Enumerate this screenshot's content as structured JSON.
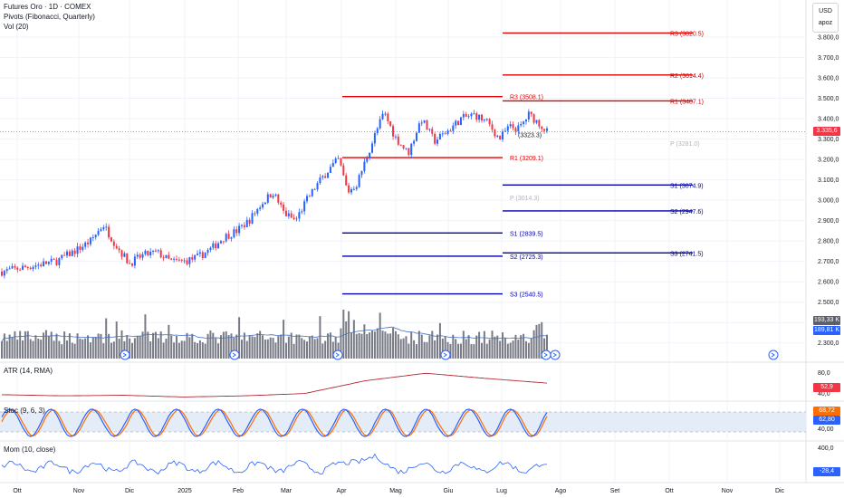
{
  "legend": {
    "title": "Futures Oro · 1D · COMEX",
    "pivots": "Pivots (Fibonacci, Quarterly)",
    "vol": "Vol (20)"
  },
  "currency_box": {
    "currency": "USD",
    "unit": "apoz"
  },
  "price_tags": {
    "last": "3.335,6",
    "vol_a": "193,33 K",
    "vol_b": "189,81 K"
  },
  "panes": {
    "atr": {
      "label": "ATR (14, RMA)",
      "tag": "52,9",
      "ticks": [
        "80,0",
        "40,0"
      ]
    },
    "stoch": {
      "label": "Stoc (9, 6, 3)",
      "tag_k": "68,72",
      "tag_d": "62,80",
      "ticks": [
        "40,00"
      ]
    },
    "mom": {
      "label": "Mom (10, close)",
      "tag": "-28,4",
      "ticks": [
        "400,0"
      ]
    }
  },
  "colors": {
    "up": "#2962ff",
    "down": "#f23645",
    "volume": "#787b86",
    "vol_ma": "#4472c4",
    "resistance": "#e00000",
    "support": "#0000b0",
    "pivot": "#ffffff",
    "atr": "#b22833",
    "stoch_k": "#2962ff",
    "stoch_d": "#ff6d00",
    "mom": "#2962ff"
  },
  "chart_data": [
    {
      "type": "candlestick",
      "x_ticks": [
        "Ott",
        "Nov",
        "Dic",
        "2025",
        "Feb",
        "Mar",
        "Apr",
        "Mag",
        "Giu",
        "Lug",
        "Ago",
        "Set",
        "Ott",
        "Nov",
        "Dic"
      ],
      "y_ticks": [
        "3.800,0",
        "3.700,0",
        "3.600,0",
        "3.500,0",
        "3.400,0",
        "3.300,0",
        "3.200,0",
        "3.100,0",
        "3.000,0",
        "2.900,0",
        "2.800,0",
        "2.700,0",
        "2.600,0",
        "2.500,0",
        "2.400,0",
        "2.300,0"
      ],
      "ylim": [
        2250,
        3840
      ],
      "price_path": [
        [
          "Ott",
          2650
        ],
        [
          "Ott",
          2700
        ],
        [
          "Nov",
          2760
        ],
        [
          "Nov",
          2800
        ],
        [
          "Nov",
          2880
        ],
        [
          "Nov",
          2780
        ],
        [
          "Dic",
          2690
        ],
        [
          "Dic",
          2730
        ],
        [
          "Dic",
          2745
        ],
        [
          "Dic",
          2700
        ],
        [
          "2025",
          2700
        ],
        [
          "2025",
          2720
        ],
        [
          "2025",
          2760
        ],
        [
          "2025",
          2820
        ],
        [
          "Feb",
          2850
        ],
        [
          "Feb",
          2900
        ],
        [
          "Feb",
          2980
        ],
        [
          "Feb",
          3040
        ],
        [
          "Mar",
          2935
        ],
        [
          "Mar",
          2900
        ],
        [
          "Mar",
          3000
        ],
        [
          "Mar",
          3080
        ],
        [
          "Mar",
          3150
        ],
        [
          "Apr",
          3200
        ],
        [
          "Apr",
          3040
        ],
        [
          "Apr",
          3080
        ],
        [
          "Apr",
          3200
        ],
        [
          "Apr",
          3320
        ],
        [
          "Apr",
          3430
        ],
        [
          "Mag",
          3310
        ],
        [
          "Mag",
          3230
        ],
        [
          "Mag",
          3400
        ],
        [
          "Mag",
          3290
        ],
        [
          "Giu",
          3340
        ],
        [
          "Giu",
          3400
        ],
        [
          "Giu",
          3420
        ],
        [
          "Giu",
          3380
        ],
        [
          "Lug",
          3300
        ],
        [
          "Lug",
          3360
        ],
        [
          "Lug",
          3350
        ],
        [
          "Lug",
          3420
        ],
        [
          "Lug",
          3380
        ],
        [
          "Lug",
          3335.6
        ]
      ],
      "last_price": 3335.6,
      "pivots_previous_quarter": [
        {
          "label": "R3 (3508.1)",
          "value": 3508.1,
          "kind": "resistance"
        },
        {
          "label": "R1 (3209.1)",
          "value": 3209.1,
          "kind": "resistance"
        },
        {
          "label": "P (3014.3)",
          "value": 3014.3,
          "kind": "pivot"
        },
        {
          "label": "S1 (2839.5)",
          "value": 2839.5,
          "kind": "support"
        },
        {
          "label": "S2 (2725.3)",
          "value": 2725.3,
          "kind": "support"
        },
        {
          "label": "S3 (2540.5)",
          "value": 2540.5,
          "kind": "support"
        }
      ],
      "pivots_current_quarter": [
        {
          "label": "R3 (3820.5)",
          "value": 3820.5,
          "kind": "resistance"
        },
        {
          "label": "R2 (3614.4)",
          "value": 3614.4,
          "kind": "resistance"
        },
        {
          "label": "R1 (3487.1)",
          "value": 3487.1,
          "kind": "resistance"
        },
        {
          "label": "P (3281.0)",
          "value": 3281.0,
          "kind": "pivot"
        },
        {
          "label": "S1 (3074.9)",
          "value": 3074.9,
          "kind": "support"
        },
        {
          "label": "S2 (2947.6)",
          "value": 2947.6,
          "kind": "support"
        },
        {
          "label": "S3 (2741.5)",
          "value": 2741.5,
          "kind": "support"
        }
      ],
      "extra_level_label": "(3323.3)",
      "extra_level_value": 3323.3
    },
    {
      "type": "bar",
      "name": "Vol (20)",
      "last_value_k": 193.33,
      "ma_value_k": 189.81
    },
    {
      "type": "line",
      "name": "ATR (14, RMA)",
      "x": [
        "Ott",
        "Nov",
        "Dic",
        "2025",
        "Feb",
        "Mar",
        "Apr",
        "Mag",
        "Giu",
        "Lug"
      ],
      "values": [
        38,
        36,
        37,
        34,
        36,
        40,
        62,
        75,
        66,
        58
      ],
      "last_value": 52.9
    },
    {
      "type": "line",
      "name": "Stoc (9, 6, 3)",
      "last_k": 68.72,
      "last_d": 62.8
    },
    {
      "type": "line",
      "name": "Mom (10, close)",
      "last_value": -28.4
    }
  ]
}
